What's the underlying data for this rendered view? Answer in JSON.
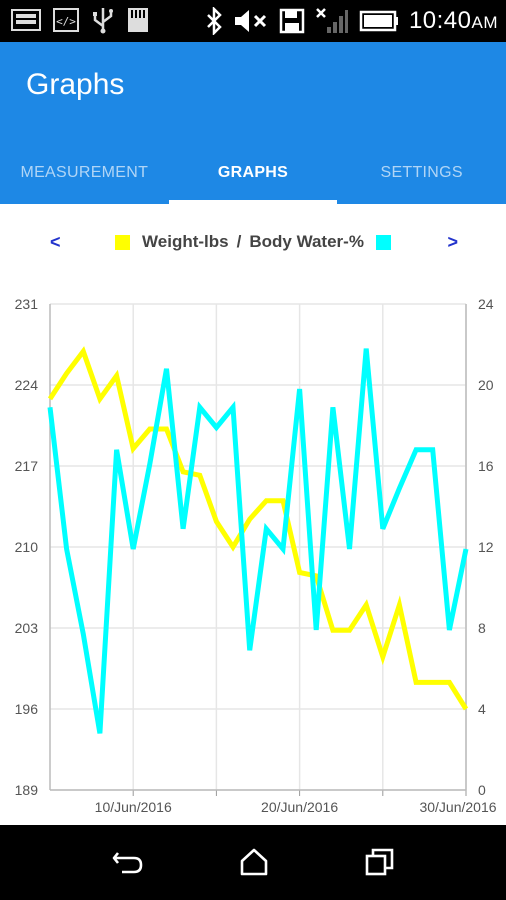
{
  "status_bar": {
    "time": "10:40",
    "ampm": "AM",
    "icons": [
      "image-icon",
      "code-icon",
      "usb-icon",
      "sd-card-icon",
      "bluetooth-icon",
      "mute-icon",
      "save-icon",
      "no-signal-icon",
      "battery-icon"
    ]
  },
  "app_bar": {
    "title": "Graphs",
    "color": "#1e88e5",
    "tabs": [
      {
        "label": "MEASUREMENT",
        "active": false
      },
      {
        "label": "GRAPHS",
        "active": true
      },
      {
        "label": "SETTINGS",
        "active": false
      }
    ]
  },
  "legend": {
    "prev": "<",
    "next": ">",
    "series_1": "Weight-lbs",
    "separator": "/",
    "series_2": "Body Water-%"
  },
  "chart_data": {
    "type": "line",
    "x_start": "2016-06-05",
    "x_end": "2016-06-30",
    "x_tick_labels": [
      "10/Jun/2016",
      "20/Jun/2016",
      "30/Jun/2016"
    ],
    "y_left_ticks": [
      "231",
      "224",
      "217",
      "210",
      "203",
      "196",
      "189"
    ],
    "y_left_range": [
      189,
      231
    ],
    "y_right_ticks": [
      "24",
      "20",
      "16",
      "12",
      "8",
      "4",
      "0"
    ],
    "y_right_range": [
      0,
      24
    ],
    "grid": true,
    "series": [
      {
        "name": "Weight-lbs",
        "axis": "left",
        "color": "#ffff00",
        "points": [
          [
            "2016-06-05",
            222.8
          ],
          [
            "2016-06-06",
            225.0
          ],
          [
            "2016-06-07",
            226.9
          ],
          [
            "2016-06-08",
            222.8
          ],
          [
            "2016-06-09",
            224.8
          ],
          [
            "2016-06-10",
            218.5
          ],
          [
            "2016-06-11",
            220.2
          ],
          [
            "2016-06-12",
            220.2
          ],
          [
            "2016-06-13",
            216.5
          ],
          [
            "2016-06-14",
            216.2
          ],
          [
            "2016-06-15",
            212.2
          ],
          [
            "2016-06-16",
            210.0
          ],
          [
            "2016-06-17",
            212.4
          ],
          [
            "2016-06-18",
            214.0
          ],
          [
            "2016-06-19",
            214.0
          ],
          [
            "2016-06-20",
            207.8
          ],
          [
            "2016-06-21",
            207.5
          ],
          [
            "2016-06-22",
            202.8
          ],
          [
            "2016-06-23",
            202.8
          ],
          [
            "2016-06-24",
            205.0
          ],
          [
            "2016-06-25",
            200.5
          ],
          [
            "2016-06-26",
            205.0
          ],
          [
            "2016-06-27",
            198.3
          ],
          [
            "2016-06-28",
            198.3
          ],
          [
            "2016-06-29",
            198.3
          ],
          [
            "2016-06-30",
            196.0
          ]
        ]
      },
      {
        "name": "Body Water-%",
        "axis": "right",
        "color": "#00ffff",
        "points": [
          [
            "2016-06-05",
            18.9
          ],
          [
            "2016-06-06",
            11.9
          ],
          [
            "2016-06-07",
            7.7
          ],
          [
            "2016-06-08",
            2.8
          ],
          [
            "2016-06-09",
            16.8
          ],
          [
            "2016-06-10",
            11.9
          ],
          [
            "2016-06-11",
            16.1
          ],
          [
            "2016-06-12",
            20.8
          ],
          [
            "2016-06-13",
            12.9
          ],
          [
            "2016-06-14",
            18.9
          ],
          [
            "2016-06-15",
            17.9
          ],
          [
            "2016-06-16",
            18.9
          ],
          [
            "2016-06-17",
            6.9
          ],
          [
            "2016-06-18",
            12.9
          ],
          [
            "2016-06-19",
            11.9
          ],
          [
            "2016-06-20",
            19.8
          ],
          [
            "2016-06-21",
            7.9
          ],
          [
            "2016-06-22",
            18.9
          ],
          [
            "2016-06-23",
            11.9
          ],
          [
            "2016-06-24",
            21.8
          ],
          [
            "2016-06-25",
            12.9
          ],
          [
            "2016-06-26",
            14.9
          ],
          [
            "2016-06-27",
            16.8
          ],
          [
            "2016-06-28",
            16.8
          ],
          [
            "2016-06-29",
            7.9
          ],
          [
            "2016-06-30",
            11.9
          ]
        ]
      }
    ]
  },
  "navigation_bar": {
    "buttons": [
      "back-icon",
      "home-icon",
      "recent-apps-icon"
    ]
  }
}
